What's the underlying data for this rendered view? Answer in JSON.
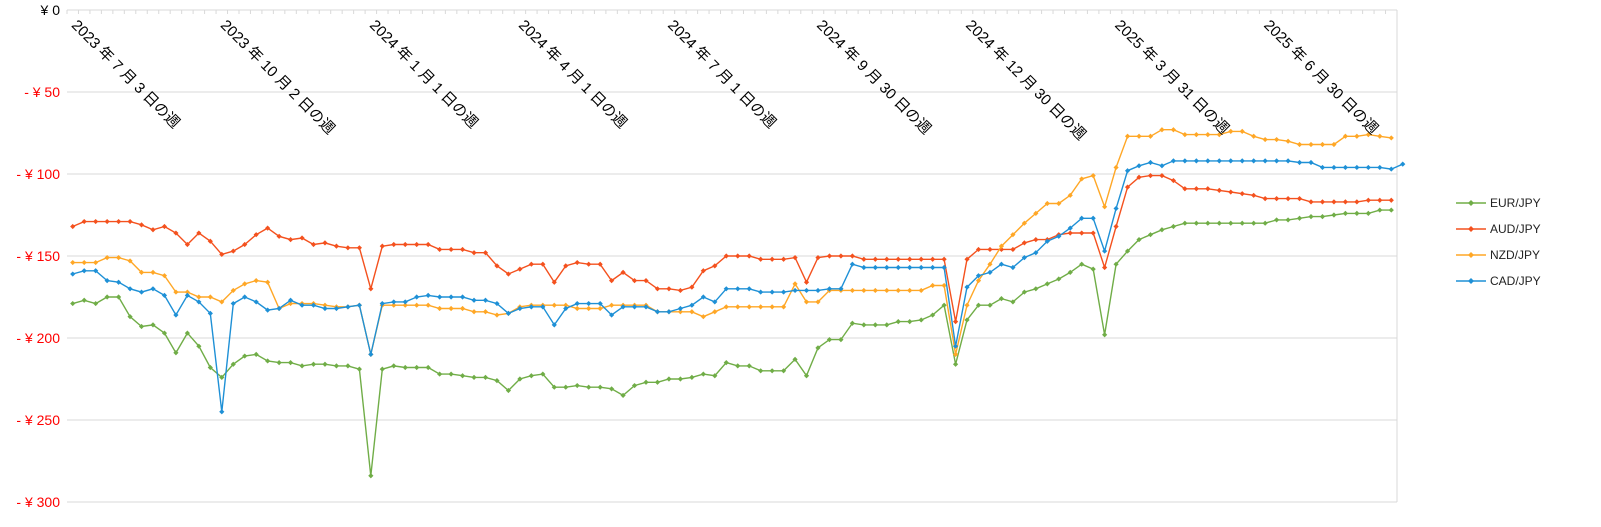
{
  "chart_data": {
    "type": "line",
    "title": "",
    "xlabel": "",
    "ylabel": "",
    "ylim": [
      -300,
      0
    ],
    "grid": true,
    "legend_position": "right",
    "y_ticks": [
      {
        "value": 0,
        "label": "¥ 0"
      },
      {
        "value": -50,
        "label": "- ¥ 50"
      },
      {
        "value": -100,
        "label": "- ¥ 100"
      },
      {
        "value": -150,
        "label": "- ¥ 150"
      },
      {
        "value": -200,
        "label": "- ¥ 200"
      },
      {
        "value": -250,
        "label": "- ¥ 250"
      },
      {
        "value": -300,
        "label": "- ¥ 300"
      }
    ],
    "x_tick_labels": [
      {
        "index": 0,
        "label": "2023 年 7 月 3 日の週"
      },
      {
        "index": 13,
        "label": "2023 年 10 月 2 日の週"
      },
      {
        "index": 26,
        "label": "2024 年 1 月 1 日の週"
      },
      {
        "index": 39,
        "label": "2024 年 4 月 1 日の週"
      },
      {
        "index": 52,
        "label": "2024 年 7 月 1 日の週"
      },
      {
        "index": 65,
        "label": "2024 年 9 月 30 日の週"
      },
      {
        "index": 78,
        "label": "2024 年 12 月 30 日の週"
      },
      {
        "index": 91,
        "label": "2025 年 3 月 31 日の週"
      },
      {
        "index": 104,
        "label": "2025 年 6 月 30 日の週"
      }
    ],
    "x_count": 116,
    "series": [
      {
        "name": "EUR/JPY",
        "color": "#70AD47",
        "values": [
          -179,
          -177,
          -179,
          -175,
          -175,
          -187,
          -193,
          -192,
          -197,
          -209,
          -197,
          -205,
          -218,
          -224,
          -216,
          -211,
          -210,
          -214,
          -215,
          -215,
          -217,
          -216,
          -216,
          -217,
          -217,
          -219,
          -284,
          -219,
          -217,
          -218,
          -218,
          -218,
          -222,
          -222,
          -223,
          -224,
          -224,
          -226,
          -232,
          -225,
          -223,
          -222,
          -230,
          -230,
          -229,
          -230,
          -230,
          -231,
          -235,
          -229,
          -227,
          -227,
          -225,
          -225,
          -224,
          -222,
          -223,
          -215,
          -217,
          -217,
          -220,
          -220,
          -220,
          -213,
          -223,
          -206,
          -201,
          -201,
          -191,
          -192,
          -192,
          -192,
          -190,
          -190,
          -189,
          -186,
          -180,
          -216,
          -189,
          -180,
          -180,
          -176,
          -178,
          -172,
          -170,
          -167,
          -164,
          -160,
          -155,
          -158,
          -198,
          -155,
          -147,
          -140,
          -137,
          -134,
          -132,
          -130,
          -130,
          -130,
          -130,
          -130,
          -130,
          -130,
          -130,
          -128,
          -128,
          -127,
          -126,
          -126,
          -125,
          -124,
          -124,
          -124,
          -122,
          -122
        ]
      },
      {
        "name": "AUD/JPY",
        "color": "#F4511E",
        "values": [
          -132,
          -129,
          -129,
          -129,
          -129,
          -129,
          -131,
          -134,
          -132,
          -136,
          -143,
          -136,
          -141,
          -149,
          -147,
          -143,
          -137,
          -133,
          -138,
          -140,
          -139,
          -143,
          -142,
          -144,
          -145,
          -145,
          -170,
          -144,
          -143,
          -143,
          -143,
          -143,
          -146,
          -146,
          -146,
          -148,
          -148,
          -156,
          -161,
          -158,
          -155,
          -155,
          -166,
          -156,
          -154,
          -155,
          -155,
          -165,
          -160,
          -165,
          -165,
          -170,
          -170,
          -171,
          -169,
          -159,
          -156,
          -150,
          -150,
          -150,
          -152,
          -152,
          -152,
          -151,
          -166,
          -151,
          -150,
          -150,
          -150,
          -152,
          -152,
          -152,
          -152,
          -152,
          -152,
          -152,
          -152,
          -190,
          -152,
          -146,
          -146,
          -146,
          -146,
          -142,
          -140,
          -140,
          -137,
          -136,
          -136,
          -136,
          -157,
          -132,
          -108,
          -102,
          -101,
          -101,
          -104,
          -109,
          -109,
          -109,
          -110,
          -111,
          -112,
          -113,
          -115,
          -115,
          -115,
          -115,
          -117,
          -117,
          -117,
          -117,
          -117,
          -116,
          -116,
          -116
        ]
      },
      {
        "name": "NZD/JPY",
        "color": "#FFA726",
        "values": [
          -154,
          -154,
          -154,
          -151,
          -151,
          -153,
          -160,
          -160,
          -162,
          -172,
          -172,
          -175,
          -175,
          -178,
          -171,
          -167,
          -165,
          -166,
          -182,
          -179,
          -179,
          -179,
          -180,
          -181,
          -181,
          -180,
          -210,
          -180,
          -180,
          -180,
          -180,
          -180,
          -182,
          -182,
          -182,
          -184,
          -184,
          -186,
          -185,
          -181,
          -180,
          -180,
          -180,
          -180,
          -182,
          -182,
          -182,
          -180,
          -180,
          -180,
          -180,
          -184,
          -184,
          -184,
          -184,
          -187,
          -184,
          -181,
          -181,
          -181,
          -181,
          -181,
          -181,
          -167,
          -178,
          -178,
          -171,
          -171,
          -171,
          -171,
          -171,
          -171,
          -171,
          -171,
          -171,
          -168,
          -168,
          -210,
          -180,
          -165,
          -155,
          -144,
          -137,
          -130,
          -124,
          -118,
          -118,
          -113,
          -103,
          -101,
          -120,
          -96,
          -77,
          -77,
          -77,
          -73,
          -73,
          -76,
          -76,
          -76,
          -76,
          -74,
          -74,
          -77,
          -79,
          -79,
          -80,
          -82,
          -82,
          -82,
          -82,
          -77,
          -77,
          -76,
          -77,
          -78
        ]
      },
      {
        "name": "CAD/JPY",
        "color": "#1E90D6",
        "values": [
          -161,
          -159,
          -159,
          -165,
          -166,
          -170,
          -172,
          -170,
          -174,
          -186,
          -174,
          -178,
          -185,
          -245,
          -179,
          -175,
          -178,
          -183,
          -182,
          -177,
          -180,
          -180,
          -182,
          -182,
          -181,
          -180,
          -210,
          -179,
          -178,
          -178,
          -175,
          -174,
          -175,
          -175,
          -175,
          -177,
          -177,
          -179,
          -185,
          -182,
          -181,
          -181,
          -192,
          -182,
          -179,
          -179,
          -179,
          -186,
          -181,
          -181,
          -181,
          -184,
          -184,
          -182,
          -180,
          -175,
          -178,
          -170,
          -170,
          -170,
          -172,
          -172,
          -172,
          -171,
          -171,
          -171,
          -170,
          -170,
          -155,
          -157,
          -157,
          -157,
          -157,
          -157,
          -157,
          -157,
          -157,
          -205,
          -169,
          -162,
          -160,
          -155,
          -157,
          -151,
          -148,
          -141,
          -138,
          -133,
          -127,
          -127,
          -147,
          -121,
          -98,
          -95,
          -93,
          -95,
          -92,
          -92,
          -92,
          -92,
          -92,
          -92,
          -92,
          -92,
          -92,
          -92,
          -92,
          -93,
          -93,
          -96,
          -96,
          -96,
          -96,
          -96,
          -96,
          -97,
          -94
        ]
      }
    ]
  }
}
